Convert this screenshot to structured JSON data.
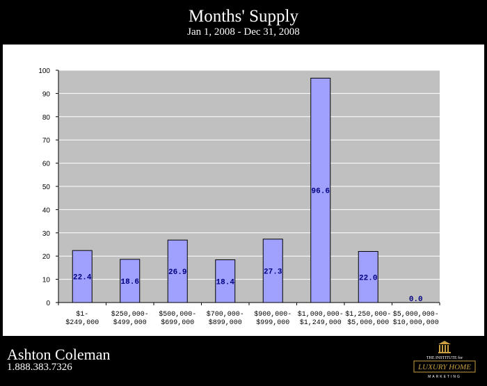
{
  "header": {
    "title": "Months' Supply",
    "subtitle": "Jan 1, 2008 - Dec 31, 2008"
  },
  "chart_data": {
    "type": "bar",
    "categories": [
      [
        "$1-",
        "$249,000"
      ],
      [
        "$250,000-",
        "$499,000"
      ],
      [
        "$500,000-",
        "$699,000"
      ],
      [
        "$700,000-",
        "$899,000"
      ],
      [
        "$900,000-",
        "$999,000"
      ],
      [
        "$1,000,000-",
        "$1,249,000"
      ],
      [
        "$1,250,000-",
        "$5,000,000"
      ],
      [
        "$5,000,000-",
        "$10,000,000"
      ]
    ],
    "values": [
      22.4,
      18.6,
      26.9,
      18.4,
      27.3,
      96.6,
      22.0,
      0.0
    ],
    "data_labels": [
      "22.4",
      "18.6",
      "26.9",
      "18.4",
      "27.3",
      "96.6",
      "22.0",
      "0.0"
    ],
    "ylim": [
      0,
      100
    ],
    "yticks": [
      0,
      10,
      20,
      30,
      40,
      50,
      60,
      70,
      80,
      90,
      100
    ],
    "grid": true,
    "colors": {
      "bar_fill": "#a0a0ff",
      "bar_stroke": "#000000",
      "plot_bg": "#c0c0c0",
      "gridline": "#ffffff",
      "data_label": "#000080"
    }
  },
  "footer": {
    "agent_name": "Ashton Coleman",
    "phone": "1.888.383.7326"
  },
  "logo": {
    "line1": "THE INSTITUTE for",
    "line2": "LUXURY HOME",
    "line3": "MARKETING"
  }
}
